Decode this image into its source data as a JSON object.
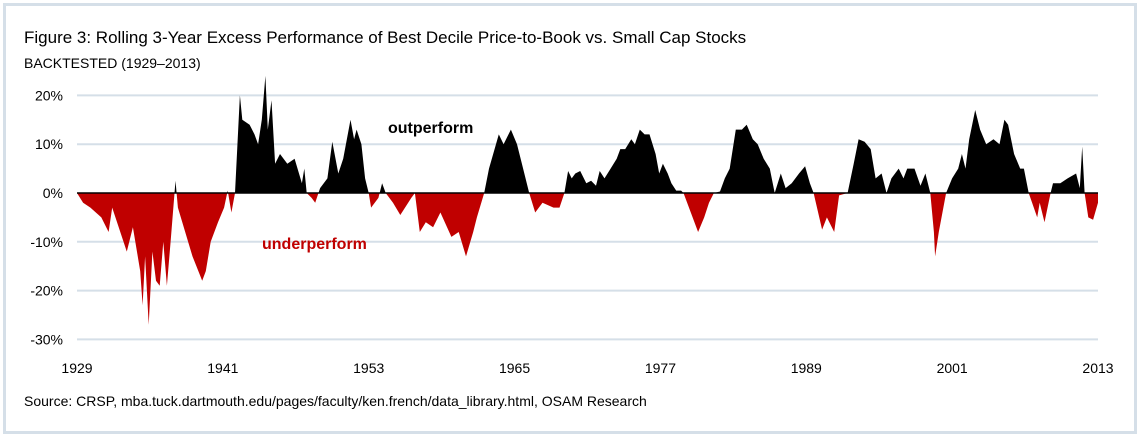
{
  "title": "Figure 3: Rolling 3-Year Excess Performance of Best Decile Price-to-Book vs. Small Cap Stocks",
  "subtitle": "BACKTESTED (1929–2013)",
  "source": "Source: CRSP, mba.tuck.dartmouth.edu/pages/faculty/ken.french/data_library.html, OSAM Research",
  "chart_data": {
    "type": "area",
    "title": "Figure 3: Rolling 3-Year Excess Performance of Best Decile Price-to-Book vs. Small Cap Stocks",
    "subtitle": "BACKTESTED (1929–2013)",
    "xlabel": "",
    "ylabel": "",
    "xlim": [
      1929,
      2013
    ],
    "ylim": [
      -30,
      22
    ],
    "x_ticks": [
      1929,
      1941,
      1953,
      1965,
      1977,
      1989,
      2001,
      2013
    ],
    "y_ticks": [
      20,
      10,
      0,
      -10,
      -20,
      -30
    ],
    "y_tick_labels": [
      "20%",
      "10%",
      "0%",
      "-10%",
      "-20%",
      "-30%"
    ],
    "grid": "horizontal",
    "colors": {
      "positive": "#000000",
      "negative": "#c00000",
      "grid": "#d5dfe8"
    },
    "annotations": [
      {
        "text": "outperform",
        "color": "#000000"
      },
      {
        "text": "underperform",
        "color": "#c00000"
      }
    ],
    "unit": "%",
    "x": [
      1929.0,
      1929.5,
      1930.1,
      1931.0,
      1931.6,
      1931.9,
      1933.1,
      1933.6,
      1934.2,
      1934.4,
      1934.6,
      1934.9,
      1935.2,
      1935.5,
      1935.8,
      1936.1,
      1936.4,
      1936.7,
      1937.1,
      1937.3,
      1937.9,
      1938.5,
      1939.3,
      1939.6,
      1940.0,
      1940.6,
      1941.1,
      1941.4,
      1941.7,
      1942.0,
      1942.4,
      1942.6,
      1943.2,
      1943.6,
      1943.9,
      1944.2,
      1944.5,
      1944.7,
      1945.0,
      1945.3,
      1945.7,
      1946.3,
      1946.9,
      1947.5,
      1947.7,
      1947.9,
      1948.3,
      1948.6,
      1949.0,
      1949.6,
      1950.0,
      1950.5,
      1950.9,
      1951.5,
      1951.8,
      1952.0,
      1952.4,
      1952.7,
      1953.0,
      1953.2,
      1953.8,
      1954.1,
      1954.4,
      1955.0,
      1955.6,
      1956.5,
      1956.8,
      1957.2,
      1957.7,
      1958.3,
      1958.9,
      1959.8,
      1960.4,
      1961.0,
      1961.6,
      1961.9,
      1962.5,
      1962.9,
      1963.7,
      1964.1,
      1964.7,
      1965.2,
      1965.6,
      1966.2,
      1966.7,
      1967.3,
      1968.2,
      1968.7,
      1969.1,
      1969.4,
      1969.7,
      1970.0,
      1970.4,
      1970.9,
      1971.3,
      1971.7,
      1972.0,
      1972.4,
      1972.9,
      1973.4,
      1973.7,
      1974.1,
      1974.6,
      1974.9,
      1975.3,
      1975.7,
      1976.1,
      1976.6,
      1976.9,
      1977.2,
      1977.6,
      1977.9,
      1978.3,
      1978.7,
      1978.9,
      1979.5,
      1980.1,
      1980.6,
      1981.0,
      1981.4,
      1981.9,
      1982.3,
      1982.7,
      1983.2,
      1983.7,
      1984.1,
      1984.6,
      1985.0,
      1985.5,
      1986.0,
      1986.4,
      1986.9,
      1987.3,
      1987.8,
      1988.4,
      1988.9,
      1989.3,
      1989.6,
      1990.3,
      1990.7,
      1991.3,
      1991.7,
      1992.4,
      1992.9,
      1993.3,
      1993.8,
      1994.3,
      1994.7,
      1995.2,
      1995.6,
      1996.0,
      1996.6,
      1997.0,
      1997.3,
      1997.9,
      1998.4,
      1998.8,
      1999.2,
      1999.5,
      1999.6,
      1999.9,
      2000.5,
      2001.0,
      2001.5,
      2001.8,
      2002.1,
      2002.4,
      2002.9,
      2003.3,
      2003.8,
      2004.4,
      2004.9,
      2005.3,
      2005.6,
      2006.1,
      2006.6,
      2006.9,
      2007.3,
      2008.0,
      2008.2,
      2008.6,
      2009.1,
      2009.3,
      2009.9,
      2010.5,
      2011.2,
      2011.5,
      2011.7,
      2011.9,
      2012.2,
      2012.6,
      2013.0
    ],
    "y": [
      0,
      -2,
      -3,
      -5,
      -8,
      -3,
      -12,
      -7,
      -16,
      -23,
      -13,
      -27,
      -12,
      -18,
      -19,
      -10,
      -19,
      -10,
      2.5,
      -3,
      -8,
      -13,
      -18,
      -16,
      -10,
      -6,
      -3,
      0.5,
      -4,
      0,
      20,
      15,
      14,
      12,
      10,
      15,
      24,
      13,
      19,
      6,
      8,
      6,
      7,
      2,
      5,
      0,
      -1,
      -2,
      1,
      3,
      10.5,
      4,
      7,
      15,
      11,
      13,
      10,
      3,
      0,
      -3,
      -1,
      2,
      0,
      -2,
      -4.5,
      -1,
      0,
      -8,
      -6,
      -7,
      -4,
      -9,
      -8,
      -13,
      -8,
      -5,
      0,
      5,
      12,
      10,
      13,
      10,
      6,
      0,
      -4,
      -2,
      -3,
      -3,
      0,
      4.5,
      3,
      4,
      4.5,
      2,
      2.5,
      1.5,
      4.5,
      3,
      5,
      7,
      9,
      9,
      11,
      10,
      13,
      12,
      12,
      8,
      4,
      6,
      4,
      2,
      0.5,
      0.5,
      0,
      -4,
      -8,
      -5,
      -2,
      0,
      0.3,
      3,
      5,
      13,
      13,
      14,
      11,
      10,
      7,
      5,
      0,
      4,
      1,
      2,
      4,
      5.5,
      2,
      0,
      -7.5,
      -5,
      -8,
      -0.5,
      0,
      6,
      11,
      10.5,
      9,
      3,
      4,
      0,
      3,
      5,
      3,
      5,
      5,
      1.5,
      4,
      0,
      -8,
      -13,
      -8,
      0,
      3,
      5,
      8,
      5,
      11,
      17,
      13,
      10,
      11,
      10,
      15,
      14,
      8,
      5,
      5,
      0,
      -5,
      -2,
      -6,
      0,
      2,
      2,
      3,
      4,
      1,
      9.5,
      0,
      -5,
      -5.5,
      -2
    ]
  }
}
